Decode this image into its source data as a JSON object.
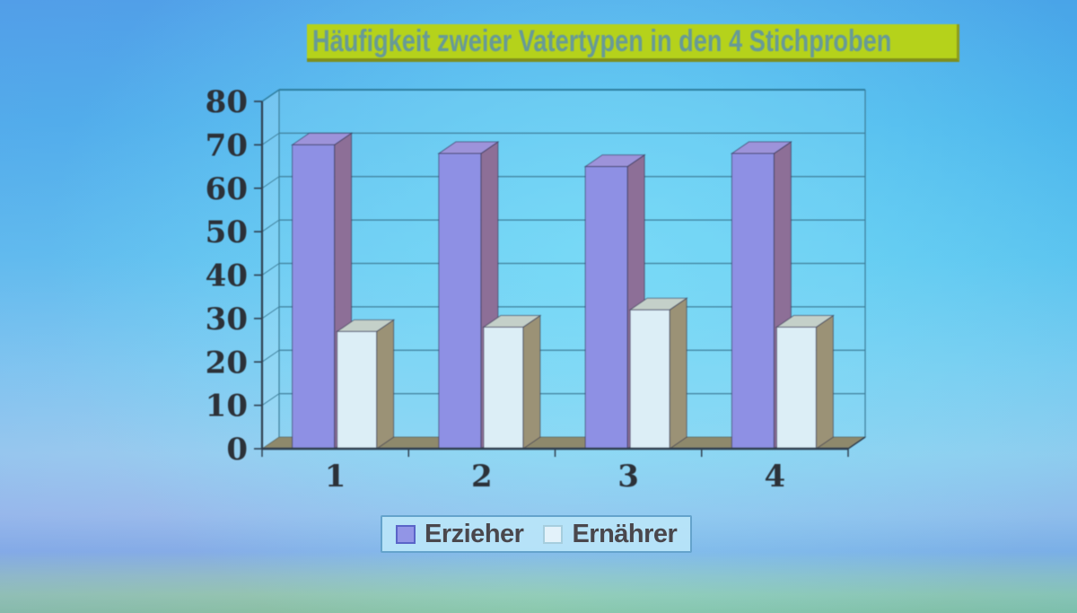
{
  "title": {
    "text": "Häufigkeit zweier Vatertypen in den 4 Stichproben",
    "highlight_color": "#b5d21b",
    "text_color": "#679a97"
  },
  "chart_data": {
    "type": "bar",
    "variant": "3d-clustered-column",
    "title": "Häufigkeit zweier Vatertypen in den 4 Stichproben",
    "categories": [
      "1",
      "2",
      "3",
      "4"
    ],
    "series": [
      {
        "name": "Erzieher",
        "values": [
          70,
          68,
          65,
          68
        ],
        "front_color": "#8e90e4",
        "top_color": "#9d93da",
        "side_color": "#8d6f97"
      },
      {
        "name": "Ernährer",
        "values": [
          27,
          28,
          32,
          28
        ],
        "front_color": "#dceef6",
        "top_color": "#c4d0c9",
        "side_color": "#9b9276"
      }
    ],
    "xlabel": "",
    "ylabel": "",
    "ylim": [
      0,
      80
    ],
    "ytick_step": 10,
    "yticks": [
      "0",
      "10",
      "20",
      "30",
      "40",
      "50",
      "60",
      "70",
      "80"
    ],
    "grid": true,
    "legend_position": "bottom",
    "colors": {
      "floor": "#8e896c",
      "grid_line": "#3e7e99",
      "frame_line": "#2e7d9e",
      "axis_line": "#2e3e4e",
      "tick_label": "#2c3138"
    }
  }
}
